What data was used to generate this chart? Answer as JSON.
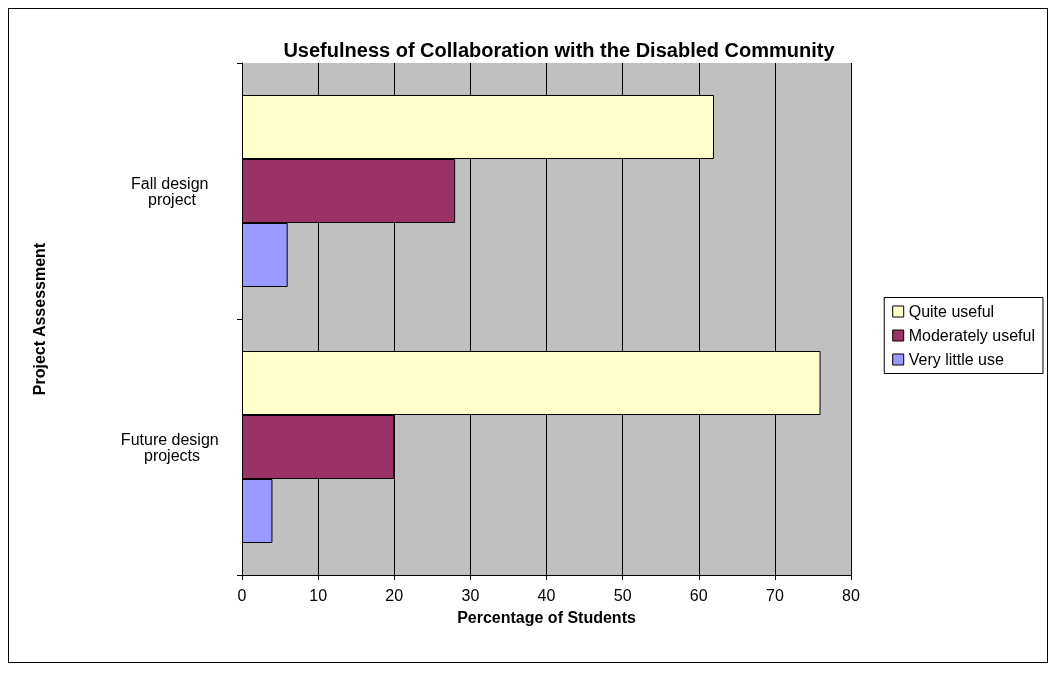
{
  "chart_data": {
    "type": "bar",
    "orientation": "horizontal",
    "title": "Usefulness of Collaboration with the Disabled Community",
    "xlabel": "Percentage of Students",
    "ylabel": "Project Assessment",
    "categories": [
      "Fall design project",
      "Future design projects"
    ],
    "series": [
      {
        "name": "Quite useful",
        "color": "#ffffcc",
        "values": [
          62,
          76
        ]
      },
      {
        "name": "Moderately useful",
        "color": "#993366",
        "values": [
          28,
          20
        ]
      },
      {
        "name": "Very little use",
        "color": "#9999ff",
        "values": [
          6,
          4
        ]
      }
    ],
    "xlim": [
      0,
      80
    ],
    "xticks": [
      0,
      10,
      20,
      30,
      40,
      50,
      60,
      70,
      80
    ],
    "grid": "x",
    "legend": "right"
  }
}
